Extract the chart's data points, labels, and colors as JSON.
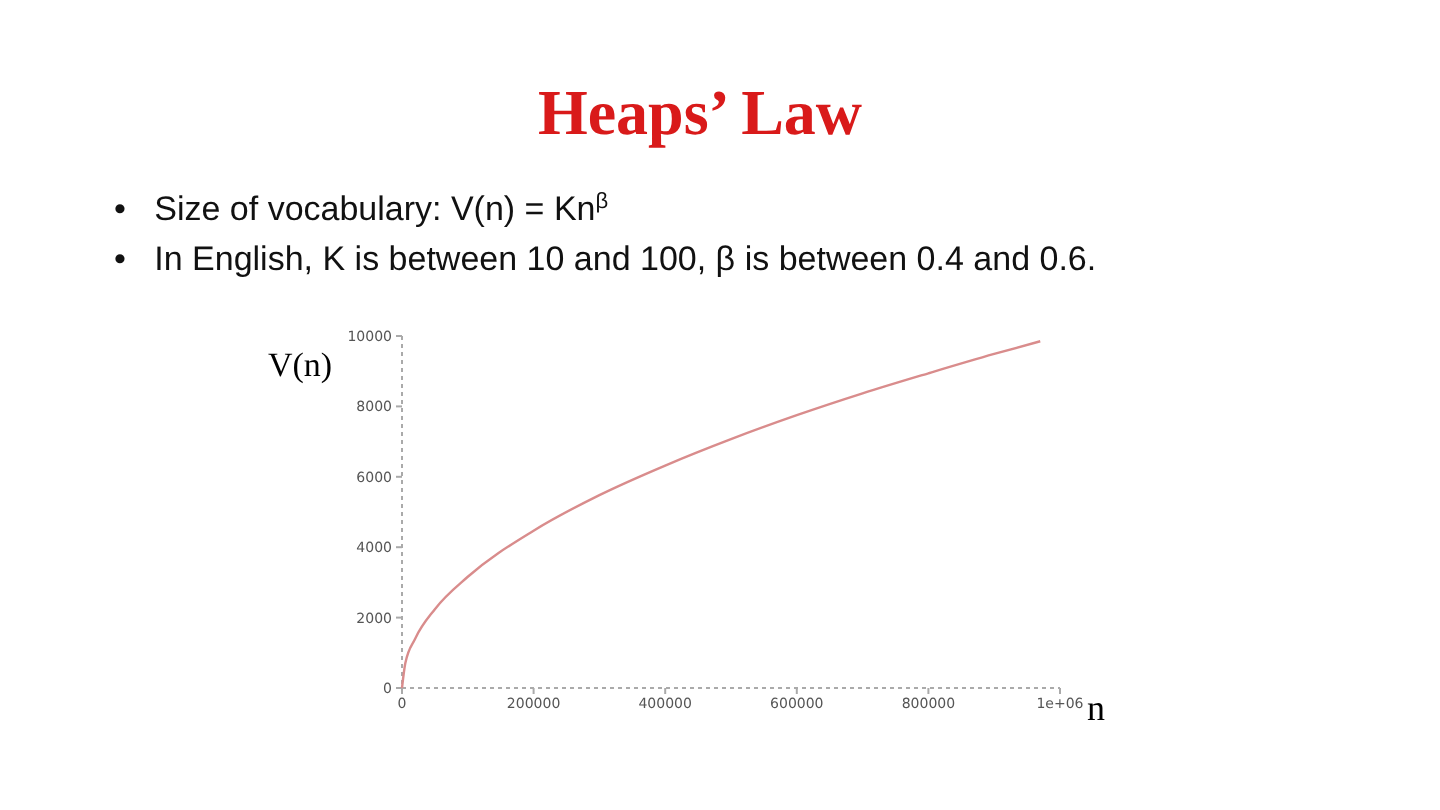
{
  "chart_data": {
    "type": "line",
    "title": "Heaps’ Law",
    "annotations": [
      "•   Size of vocabulary: V(n) = Kn$^{β}$",
      "•   In English, K is between 10 and 100, β is between 0.4 and 0.6."
    ],
    "xlabel": "n",
    "ylabel": "V(n)",
    "x": [
      0,
      5000,
      20000,
      50000,
      100000,
      200000,
      300000,
      400000,
      500000,
      600000,
      700000,
      800000,
      900000,
      970000
    ],
    "series": [
      {
        "color": "#d98c8c",
        "values": [
          0,
          700,
          1400,
          2240,
          3160,
          4470,
          5480,
          6320,
          7070,
          7750,
          8370,
          8940,
          9490,
          9850
        ]
      }
    ],
    "xlim": [
      0,
      1000000
    ],
    "xticks": [
      0,
      200000,
      400000,
      600000,
      800000,
      {
        "value": 1000000,
        "label": "1e+06"
      }
    ],
    "ylim": [
      0,
      10000
    ],
    "yticks": [
      0,
      2000,
      4000,
      6000,
      8000,
      10000
    ],
    "grid": false,
    "marker": "none",
    "line_style": "solid"
  }
}
